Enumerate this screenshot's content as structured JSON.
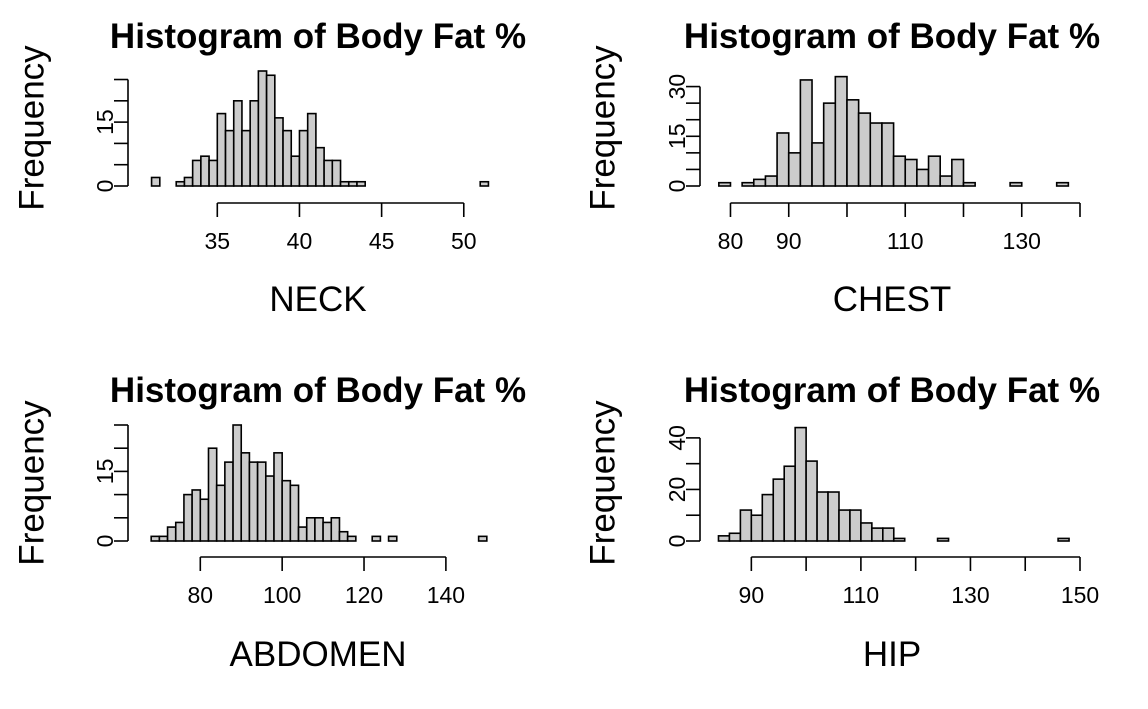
{
  "chart_data": [
    {
      "type": "bar",
      "title": "Histogram of Body Fat %",
      "xlabel": "NECK",
      "ylabel": "Frequency",
      "xlim": [
        30.6,
        51.9
      ],
      "ylim": [
        0,
        27
      ],
      "xticks": [
        35,
        40,
        45,
        50
      ],
      "yticks": [
        0,
        15
      ],
      "y_minor_ticks": [
        5,
        10,
        20,
        25
      ],
      "bin_width": 0.5,
      "bin_starts": [
        31.0,
        32.5,
        33.0,
        33.5,
        34.0,
        34.5,
        35.0,
        35.5,
        36.0,
        36.5,
        37.0,
        37.5,
        38.0,
        38.5,
        39.0,
        39.5,
        40.0,
        40.5,
        41.0,
        41.5,
        42.0,
        42.5,
        43.0,
        43.5,
        51.0
      ],
      "values": [
        2,
        1,
        2,
        6,
        7,
        6,
        17,
        13,
        20,
        13,
        20,
        27,
        26,
        16,
        13,
        7,
        13,
        17,
        9,
        6,
        6,
        1,
        1,
        1,
        1
      ]
    },
    {
      "type": "bar",
      "title": "Histogram of Body Fat %",
      "xlabel": "CHEST",
      "ylabel": "Frequency",
      "xlim": [
        77,
        140
      ],
      "ylim": [
        0,
        35
      ],
      "xticks": [
        80,
        90,
        110,
        130
      ],
      "x_minor_ticks": [
        100,
        120,
        140
      ],
      "yticks": [
        0,
        15,
        30
      ],
      "y_minor_ticks": [
        5,
        10,
        20,
        25
      ],
      "bin_width": 2,
      "bin_starts": [
        78,
        82,
        84,
        86,
        88,
        90,
        92,
        94,
        96,
        98,
        100,
        102,
        104,
        106,
        108,
        110,
        112,
        114,
        116,
        118,
        120,
        128,
        136
      ],
      "values": [
        1,
        1,
        2,
        3,
        16,
        10,
        32,
        13,
        25,
        33,
        26,
        22,
        19,
        19,
        9,
        8,
        5,
        9,
        3,
        8,
        1,
        1,
        1
      ]
    },
    {
      "type": "bar",
      "title": "Histogram of Body Fat %",
      "xlabel": "ABDOMEN",
      "ylabel": "Frequency",
      "xlim": [
        66,
        152
      ],
      "ylim": [
        0,
        25
      ],
      "xticks": [
        80,
        100,
        120,
        140
      ],
      "yticks": [
        0,
        15
      ],
      "y_minor_ticks": [
        5,
        10,
        20,
        25
      ],
      "bin_width": 2,
      "bin_starts": [
        68,
        70,
        72,
        74,
        76,
        78,
        80,
        82,
        84,
        86,
        88,
        90,
        92,
        94,
        96,
        98,
        100,
        102,
        104,
        106,
        108,
        110,
        112,
        114,
        116,
        122,
        126,
        148
      ],
      "values": [
        1,
        1,
        3,
        4,
        10,
        11,
        9,
        20,
        12,
        17,
        25,
        19,
        17,
        17,
        14,
        19,
        13,
        12,
        3,
        5,
        5,
        4,
        5,
        2,
        1,
        1,
        1,
        1
      ]
    },
    {
      "type": "bar",
      "title": "Histogram of Body Fat %",
      "xlabel": "HIP",
      "ylabel": "Frequency",
      "xlim": [
        83,
        150
      ],
      "ylim": [
        0,
        45
      ],
      "xticks": [
        90,
        110,
        130,
        150
      ],
      "x_minor_ticks": [
        100,
        120,
        140
      ],
      "yticks": [
        0,
        20,
        40
      ],
      "y_minor_ticks": [
        10,
        30
      ],
      "bin_width": 2,
      "bin_starts": [
        84,
        86,
        88,
        90,
        92,
        94,
        96,
        98,
        100,
        102,
        104,
        106,
        108,
        110,
        112,
        114,
        116,
        124,
        146
      ],
      "values": [
        2,
        3,
        12,
        10,
        18,
        24,
        29,
        44,
        31,
        19,
        19,
        12,
        12,
        7,
        5,
        5,
        1,
        1,
        1
      ]
    }
  ]
}
